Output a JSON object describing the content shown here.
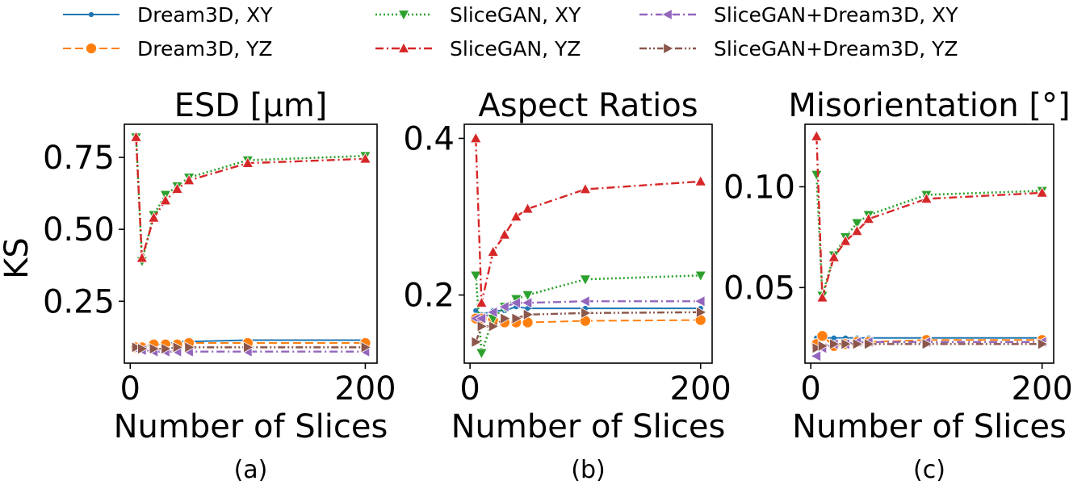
{
  "figure": {
    "ylabel": "KS",
    "legend": {
      "placement": "top",
      "entries": [
        {
          "label": "Dream3D, XY",
          "color": "#1f77b4",
          "dash": "solid",
          "marker": "point"
        },
        {
          "label": "Dream3D, YZ",
          "color": "#ff7f0e",
          "dash": "dashed",
          "marker": "circle"
        },
        {
          "label": "SliceGAN, XY",
          "color": "#2ca02c",
          "dash": "dotted",
          "marker": "triangle-down"
        },
        {
          "label": "SliceGAN, YZ",
          "color": "#d62728",
          "dash": "dashdot",
          "marker": "triangle-up"
        },
        {
          "label": "SliceGAN+Dream3D, XY",
          "color": "#9467bd",
          "dash": "dashdot",
          "marker": "triangle-left"
        },
        {
          "label": "SliceGAN+Dream3D, YZ",
          "color": "#8c564b",
          "dash": "dashdotdot",
          "marker": "triangle-right"
        }
      ]
    }
  },
  "chart_data": [
    {
      "type": "line",
      "title": "ESD [μm]",
      "caption": "(a)",
      "xlabel": "Number of Slices",
      "ylabel": "KS",
      "xlim": [
        -5,
        210
      ],
      "ylim": [
        0.035,
        0.865
      ],
      "xticks": [
        0,
        200
      ],
      "yticks": [
        0.25,
        0.5,
        0.75
      ],
      "ytick_labels": [
        "0.25",
        "0.50",
        "0.75"
      ],
      "x": [
        5,
        10,
        20,
        30,
        40,
        50,
        100,
        200
      ],
      "series": [
        {
          "name": "Dream3D, XY",
          "values": [
            0.09,
            0.09,
            0.1,
            0.1,
            0.11,
            0.11,
            0.115,
            0.115
          ]
        },
        {
          "name": "Dream3D, YZ",
          "values": [
            0.09,
            0.09,
            0.1,
            0.1,
            0.1,
            0.105,
            0.105,
            0.105
          ]
        },
        {
          "name": "SliceGAN, XY",
          "values": [
            0.82,
            0.39,
            0.55,
            0.62,
            0.65,
            0.68,
            0.74,
            0.755
          ]
        },
        {
          "name": "SliceGAN, YZ",
          "values": [
            0.82,
            0.4,
            0.54,
            0.6,
            0.64,
            0.67,
            0.73,
            0.745
          ]
        },
        {
          "name": "SliceGAN+Dream3D, XY",
          "values": [
            0.085,
            0.08,
            0.075,
            0.075,
            0.075,
            0.075,
            0.075,
            0.075
          ]
        },
        {
          "name": "SliceGAN+Dream3D, YZ",
          "values": [
            0.09,
            0.085,
            0.085,
            0.085,
            0.09,
            0.09,
            0.09,
            0.09
          ]
        }
      ]
    },
    {
      "type": "line",
      "title": "Aspect Ratios",
      "caption": "(b)",
      "xlabel": "Number of Slices",
      "ylabel": "",
      "xlim": [
        -5,
        210
      ],
      "ylim": [
        0.113,
        0.418
      ],
      "xticks": [
        0,
        200
      ],
      "yticks": [
        0.2,
        0.4
      ],
      "ytick_labels": [
        "0.2",
        "0.4"
      ],
      "x": [
        5,
        10,
        20,
        30,
        40,
        50,
        100,
        200
      ],
      "series": [
        {
          "name": "Dream3D, XY",
          "values": [
            0.18,
            0.175,
            0.18,
            0.18,
            0.185,
            0.183,
            0.183,
            0.183
          ]
        },
        {
          "name": "Dream3D, YZ",
          "values": [
            0.17,
            0.17,
            0.168,
            0.165,
            0.165,
            0.165,
            0.167,
            0.168
          ]
        },
        {
          "name": "SliceGAN, XY",
          "values": [
            0.225,
            0.126,
            0.17,
            0.185,
            0.195,
            0.2,
            0.22,
            0.225
          ]
        },
        {
          "name": "SliceGAN, YZ",
          "values": [
            0.4,
            0.19,
            0.255,
            0.277,
            0.3,
            0.31,
            0.335,
            0.345
          ]
        },
        {
          "name": "SliceGAN+Dream3D, XY",
          "values": [
            0.17,
            0.17,
            0.178,
            0.185,
            0.19,
            0.19,
            0.192,
            0.192
          ]
        },
        {
          "name": "SliceGAN+Dream3D, YZ",
          "values": [
            0.14,
            0.16,
            0.16,
            0.17,
            0.17,
            0.175,
            0.177,
            0.178
          ]
        }
      ]
    },
    {
      "type": "line",
      "title": "Misorientation [°]",
      "caption": "(c)",
      "xlabel": "Number of Slices",
      "ylabel": "",
      "xlim": [
        -5,
        210
      ],
      "ylim": [
        0.0125,
        0.131
      ],
      "xticks": [
        0,
        200
      ],
      "yticks": [
        0.05,
        0.1
      ],
      "ytick_labels": [
        "0.05",
        "0.10"
      ],
      "x": [
        5,
        10,
        20,
        30,
        40,
        50,
        100,
        200
      ],
      "series": [
        {
          "name": "Dream3D, XY",
          "values": [
            0.025,
            0.025,
            0.025,
            0.025,
            0.025,
            0.025,
            0.025,
            0.025
          ]
        },
        {
          "name": "Dream3D, YZ",
          "values": [
            0.022,
            0.026,
            0.021,
            0.022,
            0.023,
            0.023,
            0.024,
            0.024
          ]
        },
        {
          "name": "SliceGAN, XY",
          "values": [
            0.106,
            0.046,
            0.066,
            0.075,
            0.082,
            0.086,
            0.096,
            0.098
          ]
        },
        {
          "name": "SliceGAN, YZ",
          "values": [
            0.125,
            0.045,
            0.065,
            0.073,
            0.078,
            0.084,
            0.094,
            0.097
          ]
        },
        {
          "name": "SliceGAN+Dream3D, XY",
          "values": [
            0.016,
            0.02,
            0.022,
            0.022,
            0.023,
            0.023,
            0.023,
            0.023
          ]
        },
        {
          "name": "SliceGAN+Dream3D, YZ",
          "values": [
            0.02,
            0.021,
            0.022,
            0.022,
            0.022,
            0.022,
            0.022,
            0.022
          ]
        }
      ]
    }
  ]
}
